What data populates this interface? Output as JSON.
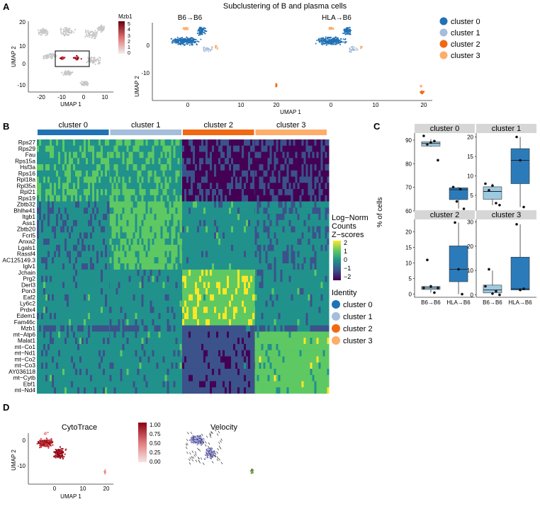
{
  "panel_letters": [
    "A",
    "B",
    "C",
    "D"
  ],
  "panelA": {
    "title": "Subclustering of B and plasma cells",
    "overview": {
      "legend_title": "Mzb1",
      "legend_ticks": [
        "5",
        "4",
        "3",
        "2",
        "1",
        "0"
      ],
      "xlabel": "UMAP 1",
      "ylabel": "UMAP 2",
      "xticks": [
        "-20",
        "-10",
        "0",
        "10"
      ],
      "yticks": [
        "20",
        "10",
        "0",
        "-10"
      ]
    },
    "subplots": [
      "B6→B6",
      "HLA→B6"
    ],
    "xlabel": "UMAP 1",
    "ylabel": "UMAP 2",
    "xticks": [
      "0",
      "10",
      "20"
    ],
    "yticks": [
      "0",
      "-10"
    ],
    "legend": [
      {
        "label": "cluster 0",
        "color": "#2171b5"
      },
      {
        "label": "cluster 1",
        "color": "#a6bddb"
      },
      {
        "label": "cluster 2",
        "color": "#f16913"
      },
      {
        "label": "cluster 3",
        "color": "#fdae6b"
      }
    ]
  },
  "chart_data": [
    {
      "type": "heatmap",
      "panel": "B",
      "column_groups": [
        "cluster 0",
        "cluster 1",
        "cluster 2",
        "cluster 3"
      ],
      "column_group_colors": [
        "#2171b5",
        "#a6bddb",
        "#f16913",
        "#fdae6b"
      ],
      "genes": [
        "Rps27",
        "Rps29",
        "Fau",
        "Rps15a",
        "Hsf3a",
        "Rps16",
        "Rpl18a",
        "Rpl35a",
        "Rpl21",
        "Rps19",
        "Zbtb32",
        "Bhlhe41",
        "Itgb1",
        "Ass1",
        "Zbtb20",
        "Fcrl5",
        "Anxa2",
        "Lgals1",
        "Rassf4",
        "AC125149.3",
        "Iglv1",
        "Jchain",
        "Prg2",
        "Derl3",
        "Pon3",
        "Eaf2",
        "Ly6c2",
        "Prdx4",
        "Edem1",
        "Fam46c",
        "Mzb1",
        "mt−Atp6",
        "Malat1",
        "mt−Co1",
        "mt−Nd1",
        "mt−Co2",
        "mt−Co3",
        "AY036118",
        "mt−Cytb",
        "Ebf1",
        "mt−Nd4"
      ],
      "colorbar_title": [
        "Log−Norm",
        "Counts",
        "Z−scores"
      ],
      "colorbar_ticks": [
        "2",
        "1",
        "0",
        "−1",
        "−2"
      ],
      "identity_title": "Identity",
      "identity_legend": [
        "cluster 0",
        "cluster 1",
        "cluster 2",
        "cluster 3"
      ]
    },
    {
      "type": "box",
      "panel": "C",
      "ylabel": "% of cells",
      "groups": [
        "B6→B6",
        "HLA→B6"
      ],
      "group_colors": [
        "#9ecae1",
        "#2b7bba"
      ],
      "facets": [
        {
          "title": "cluster 0",
          "ylim": [
            60,
            93
          ],
          "yticks": [
            "90",
            "80",
            "70",
            "60"
          ],
          "boxes": [
            {
              "q1": 87.5,
              "median": 88.6,
              "q3": 89.3,
              "min": 87.2,
              "max": 90.5
            },
            {
              "q1": 64.8,
              "median": 69.0,
              "q3": 69.8,
              "min": 61.0,
              "max": 70.2
            }
          ],
          "points": [
            [
              91.8,
              88.2,
              89.0,
              89.6,
              81.5
            ],
            [
              70.1,
              64.0,
              69.2,
              60.9
            ]
          ]
        },
        {
          "title": "cluster 1",
          "ylim": [
            1,
            21
          ],
          "yticks": [
            "20",
            "15",
            "10",
            "5"
          ],
          "boxes": [
            {
              "q1": 4.0,
              "median": 6.0,
              "q3": 7.2,
              "min": 2.5,
              "max": 8.0
            },
            {
              "q1": 8.0,
              "median": 14.0,
              "q3": 17.0,
              "min": 2.0,
              "max": 20.0
            }
          ],
          "points": [
            [
              8.0,
              6.3,
              7.5,
              3.0,
              2.5
            ],
            [
              20.0,
              14.0,
              2.0
            ]
          ]
        },
        {
          "title": "cluster 2",
          "ylim": [
            -1,
            24
          ],
          "yticks": [
            "20",
            "15",
            "10",
            "5",
            "0"
          ],
          "boxes": [
            {
              "q1": 1.5,
              "median": 2.0,
              "q3": 2.5,
              "min": 0.5,
              "max": 3.0
            },
            {
              "q1": 4.0,
              "median": 8.0,
              "q3": 15.5,
              "min": 0.0,
              "max": 23.0
            }
          ],
          "points": [
            [
              2.0,
              11.0,
              2.5,
              0.5,
              2.0
            ],
            [
              23.0,
              8.0,
              0.0
            ]
          ]
        },
        {
          "title": "cluster 3",
          "ylim": [
            -1,
            31
          ],
          "yticks": [
            "30",
            "20",
            "10",
            "0"
          ],
          "boxes": [
            {
              "q1": 0.8,
              "median": 2.0,
              "q3": 4.0,
              "min": 0.0,
              "max": 10.0
            },
            {
              "q1": 2.0,
              "median": 2.5,
              "q3": 15.5,
              "min": 2.0,
              "max": 29.0
            }
          ],
          "points": [
            [
              3.5,
              10.5,
              0.5,
              1.5,
              0.0
            ],
            [
              29.0,
              2.0,
              2.5
            ]
          ]
        }
      ]
    }
  ],
  "panelD": {
    "titles": [
      "CytoTrace",
      "Velocity"
    ],
    "colorbar_ticks": [
      "1.00",
      "0.75",
      "0.50",
      "0.25",
      "0.00"
    ],
    "xlabel": "UMAP 1",
    "ylabel": "UMAP 2",
    "xticks": [
      "0",
      "10",
      "20"
    ],
    "yticks": [
      "0",
      "-10"
    ]
  }
}
